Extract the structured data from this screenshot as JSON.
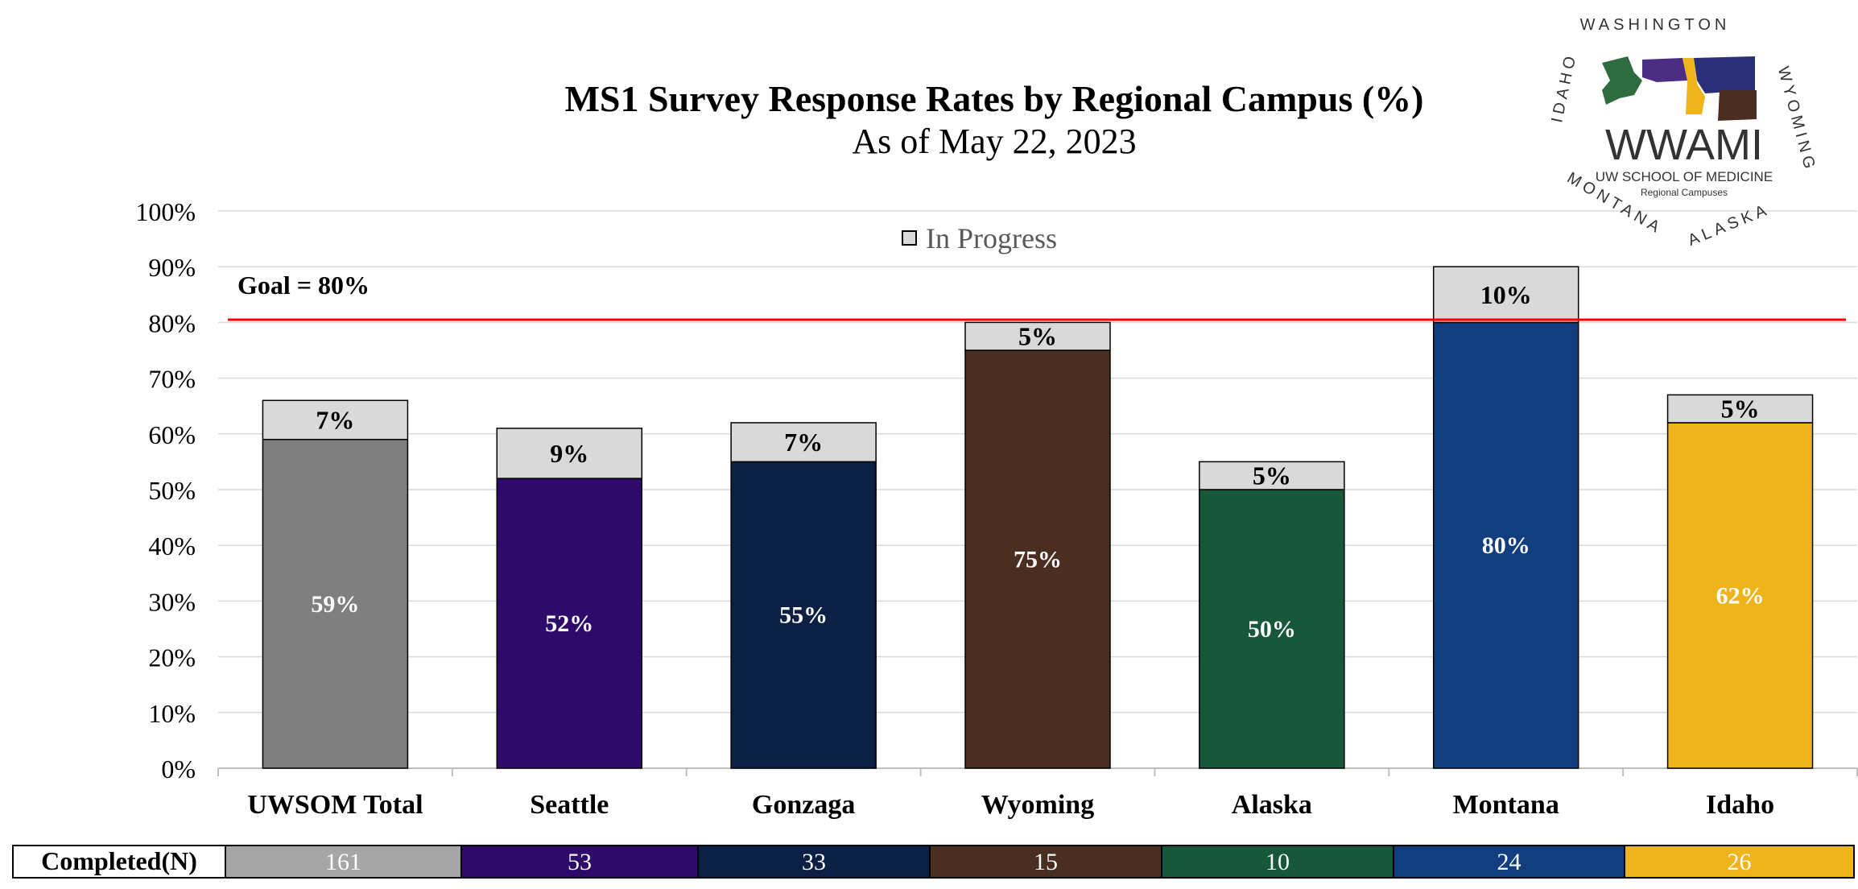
{
  "chart_data": {
    "type": "bar",
    "stacked": true,
    "title": "MS1 Survey Response Rates by Regional Campus (%)",
    "subtitle": "As of May 22, 2023",
    "categories": [
      "UWSOM Total",
      "Seattle",
      "Gonzaga",
      "Wyoming",
      "Alaska",
      "Montana",
      "Idaho"
    ],
    "series": [
      {
        "values": [
          59,
          52,
          55,
          75,
          50,
          80,
          62
        ],
        "labels": [
          "59%",
          "52%",
          "55%",
          "75%",
          "50%",
          "80%",
          "62%"
        ],
        "colors": [
          "#7f7f7f",
          "#2e0a6b",
          "#0c1f45",
          "#4a2e22",
          "#17573a",
          "#123d7e",
          "#efb31c"
        ]
      },
      {
        "name": "In Progress",
        "values": [
          7,
          9,
          7,
          5,
          5,
          10,
          5
        ],
        "labels": [
          "7%",
          "9%",
          "7%",
          "5%",
          "5%",
          "10%",
          "5%"
        ],
        "color": "#d9d9d9"
      }
    ],
    "y_tick_labels": [
      "0%",
      "10%",
      "20%",
      "30%",
      "40%",
      "50%",
      "60%",
      "70%",
      "80%",
      "90%",
      "100%"
    ],
    "ylim": [
      0,
      100
    ],
    "grid": true,
    "legend_position": "top-center",
    "goal": {
      "label": "Goal = 80%",
      "value": 80.5,
      "color": "#ff0000"
    },
    "completed_table": {
      "header": "Completed(N)",
      "values": [
        "161",
        "53",
        "33",
        "15",
        "10",
        "24",
        "26"
      ],
      "colors": [
        "#a6a6a6",
        "#2e0a6b",
        "#0c1f45",
        "#4a2e22",
        "#17573a",
        "#123d7e",
        "#efb31c"
      ]
    }
  },
  "logo": {
    "name": "WWAMI",
    "line1": "UW SCHOOL OF MEDICINE",
    "line2": "Regional Campuses",
    "ring_text": [
      "WASHINGTON",
      "WYOMING",
      "ALASKA",
      "MONTANA",
      "IDAHO"
    ]
  }
}
